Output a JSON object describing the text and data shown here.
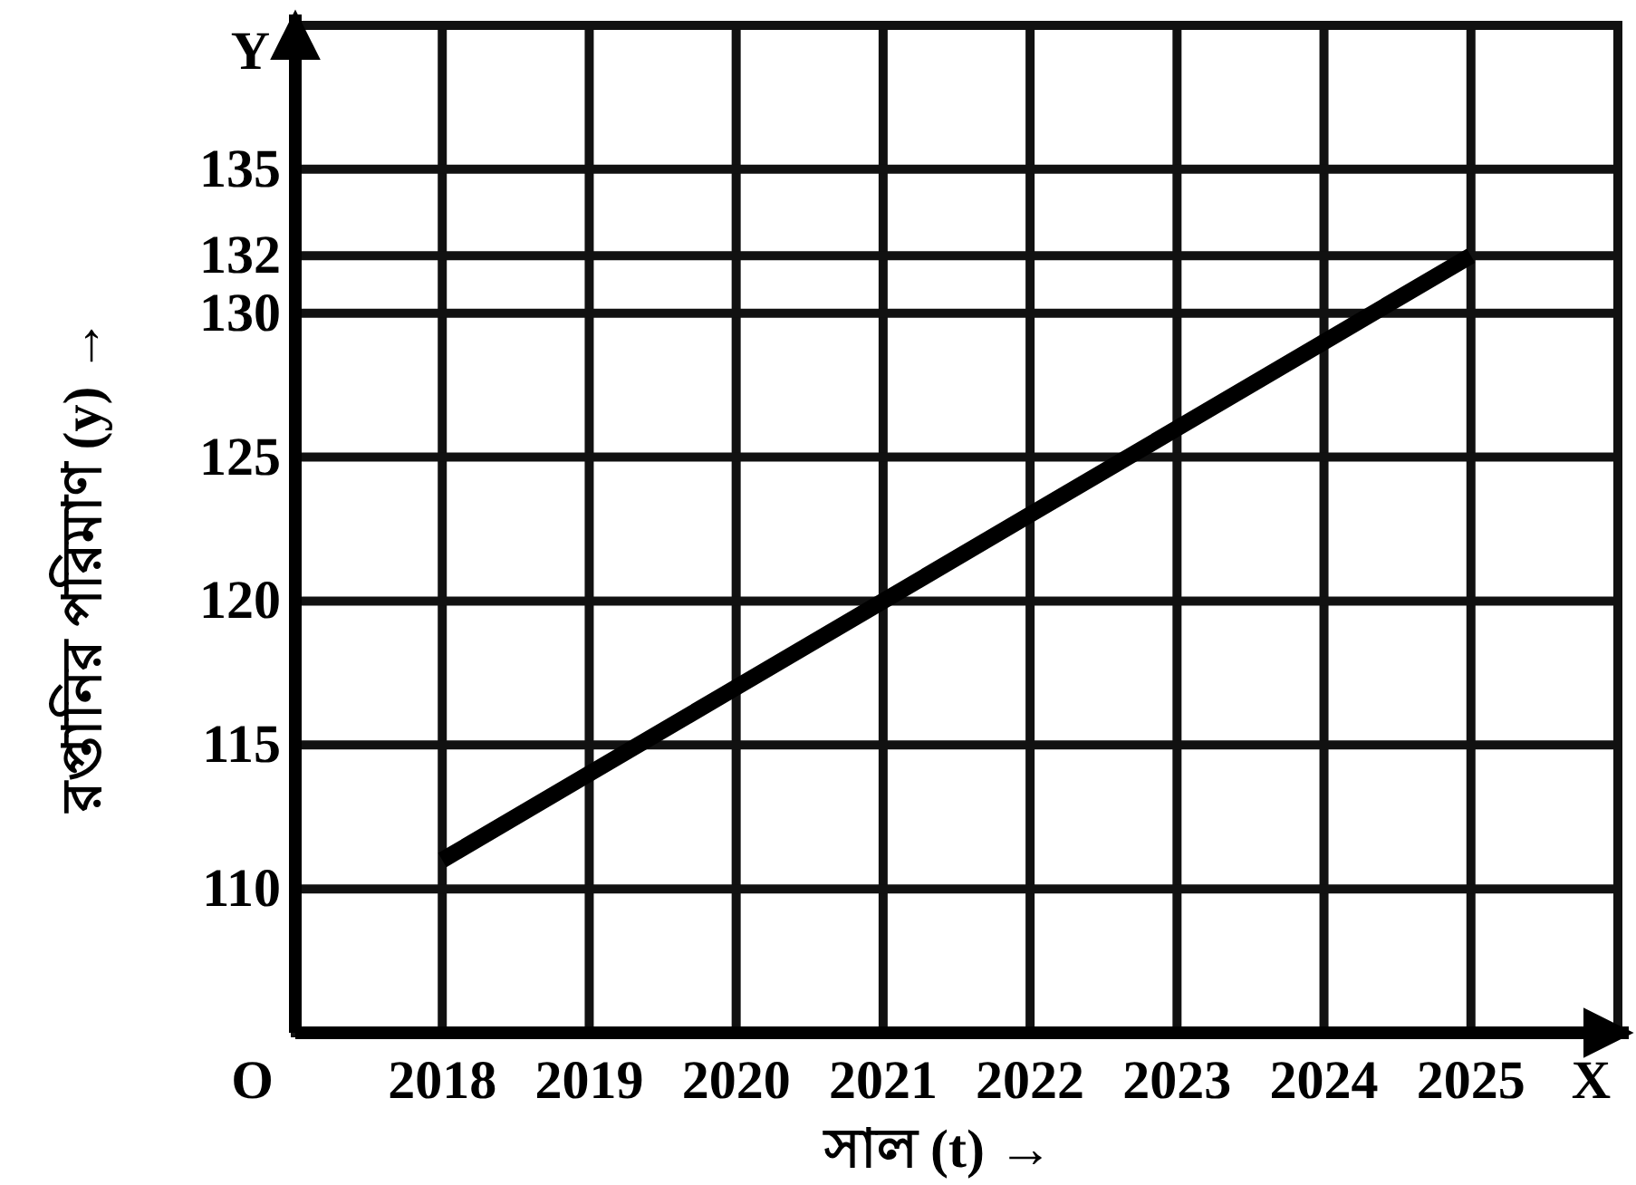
{
  "chart_data": {
    "type": "line",
    "xlabel": "সাল (t) →",
    "ylabel": "রপ্তানির পরিমাণ (y) →",
    "x": [
      2018,
      2019,
      2020,
      2021,
      2022,
      2023,
      2024,
      2025
    ],
    "series": [
      {
        "color": "#000000",
        "values": [
          111,
          114,
          117,
          120,
          123,
          126,
          129,
          132
        ]
      }
    ],
    "xlim": [
      2017,
      2026
    ],
    "ylim": [
      105,
      140
    ],
    "xticks": [
      2018,
      2019,
      2020,
      2021,
      2022,
      2023,
      2024,
      2025
    ],
    "yticks": [
      110,
      115,
      120,
      125,
      130,
      132,
      135
    ],
    "grid": true,
    "marker": "none",
    "line_style": "solid",
    "annotations": [
      "O",
      "X",
      "Y"
    ]
  }
}
